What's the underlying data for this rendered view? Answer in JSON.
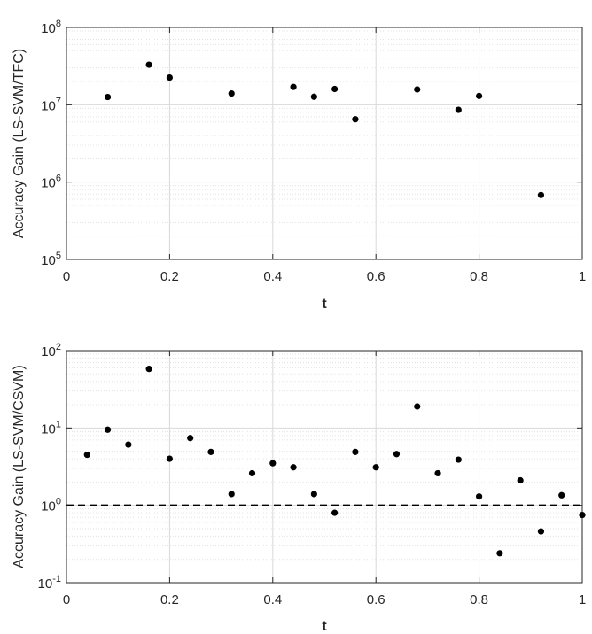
{
  "chart_data": [
    {
      "type": "scatter",
      "title": "",
      "xlabel": "t",
      "ylabel": "Accuracy Gain (LS-SVM/TFC)",
      "xlim": [
        0,
        1
      ],
      "ylim": [
        100000,
        100000000
      ],
      "yscale": "log",
      "grid": true,
      "x_ticks": [
        "0",
        "0.2",
        "0.4",
        "0.6",
        "0.8",
        "1"
      ],
      "y_ticks": [
        {
          "base": "10",
          "exp": "5"
        },
        {
          "base": "10",
          "exp": "6"
        },
        {
          "base": "10",
          "exp": "7"
        },
        {
          "base": "10",
          "exp": "8"
        }
      ],
      "color": "#000000",
      "points": [
        {
          "x": 0.08,
          "y": 12600000
        },
        {
          "x": 0.16,
          "y": 33000000
        },
        {
          "x": 0.2,
          "y": 22500000
        },
        {
          "x": 0.32,
          "y": 14000000
        },
        {
          "x": 0.44,
          "y": 17000000
        },
        {
          "x": 0.48,
          "y": 12700000
        },
        {
          "x": 0.52,
          "y": 16000000
        },
        {
          "x": 0.56,
          "y": 6500000
        },
        {
          "x": 0.68,
          "y": 15800000
        },
        {
          "x": 0.76,
          "y": 8600000
        },
        {
          "x": 0.8,
          "y": 13000000
        },
        {
          "x": 0.92,
          "y": 680000
        }
      ]
    },
    {
      "type": "scatter",
      "title": "",
      "xlabel": "t",
      "ylabel": "Accuracy Gain (LS-SVM/CSVM)",
      "xlim": [
        0,
        1
      ],
      "ylim": [
        0.1,
        100
      ],
      "yscale": "log",
      "grid": true,
      "reference_line": {
        "y": 1,
        "style": "dashed",
        "color": "#000000"
      },
      "x_ticks": [
        "0",
        "0.2",
        "0.4",
        "0.6",
        "0.8",
        "1"
      ],
      "y_ticks": [
        {
          "base": "10",
          "exp": "-1"
        },
        {
          "base": "10",
          "exp": "0"
        },
        {
          "base": "10",
          "exp": "1"
        },
        {
          "base": "10",
          "exp": "2"
        }
      ],
      "color": "#000000",
      "points": [
        {
          "x": 0.04,
          "y": 4.5
        },
        {
          "x": 0.08,
          "y": 9.5
        },
        {
          "x": 0.12,
          "y": 6.1
        },
        {
          "x": 0.16,
          "y": 58
        },
        {
          "x": 0.2,
          "y": 4.0
        },
        {
          "x": 0.24,
          "y": 7.4
        },
        {
          "x": 0.28,
          "y": 4.9
        },
        {
          "x": 0.32,
          "y": 1.4
        },
        {
          "x": 0.36,
          "y": 2.6
        },
        {
          "x": 0.4,
          "y": 3.5
        },
        {
          "x": 0.44,
          "y": 3.1
        },
        {
          "x": 0.48,
          "y": 1.4
        },
        {
          "x": 0.52,
          "y": 0.8
        },
        {
          "x": 0.56,
          "y": 4.9
        },
        {
          "x": 0.6,
          "y": 3.1
        },
        {
          "x": 0.64,
          "y": 4.6
        },
        {
          "x": 0.68,
          "y": 19
        },
        {
          "x": 0.72,
          "y": 2.6
        },
        {
          "x": 0.76,
          "y": 3.9
        },
        {
          "x": 0.8,
          "y": 1.3
        },
        {
          "x": 0.84,
          "y": 0.24
        },
        {
          "x": 0.88,
          "y": 2.1
        },
        {
          "x": 0.92,
          "y": 0.46
        },
        {
          "x": 0.96,
          "y": 1.35
        },
        {
          "x": 1.0,
          "y": 0.75
        }
      ]
    }
  ]
}
